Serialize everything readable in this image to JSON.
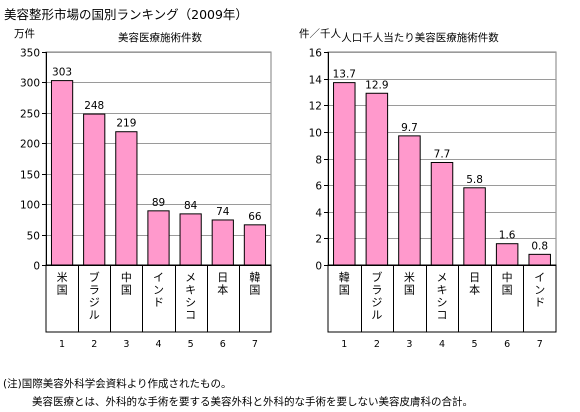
{
  "title": "美容整形市場の国別ランキング（2009年）",
  "note_line1": "(注)国際美容外科学会資料より作成されたもの。",
  "note_line2": "美容医療とは、外科的な手術を要する美容外科と外科的な手術を要しない美容皮膚科の合計。",
  "chart_data": [
    {
      "type": "bar",
      "title": "美容医療施術件数",
      "unit_label": "万件",
      "categories": [
        "米国",
        "ブラジル",
        "中国",
        "インド",
        "メキシコ",
        "日本",
        "韓国"
      ],
      "ranks": [
        "1",
        "2",
        "3",
        "4",
        "5",
        "6",
        "7"
      ],
      "values": [
        303,
        248,
        219,
        89,
        84,
        74,
        66
      ],
      "value_labels": [
        "303",
        "248",
        "219",
        "89",
        "84",
        "74",
        "66"
      ],
      "ylim": [
        0,
        350
      ],
      "yticks": [
        0,
        50,
        100,
        150,
        200,
        250,
        300,
        350
      ],
      "ytick_labels": [
        "0",
        "50",
        "100",
        "150",
        "200",
        "250",
        "300",
        "350"
      ],
      "grid": true,
      "bar_color": "#FF99CC"
    },
    {
      "type": "bar",
      "title": "人口千人当たり美容医療施術件数",
      "unit_label": "件／千人",
      "categories": [
        "韓国",
        "ブラジル",
        "米国",
        "メキシコ",
        "日本",
        "中国",
        "インド"
      ],
      "ranks": [
        "1",
        "2",
        "3",
        "4",
        "5",
        "6",
        "7"
      ],
      "values": [
        13.7,
        12.9,
        9.7,
        7.7,
        5.8,
        1.6,
        0.8
      ],
      "value_labels": [
        "13.7",
        "12.9",
        "9.7",
        "7.7",
        "5.8",
        "1.6",
        "0.8"
      ],
      "ylim": [
        0,
        16
      ],
      "yticks": [
        0,
        2,
        4,
        6,
        8,
        10,
        12,
        14,
        16
      ],
      "ytick_labels": [
        "0",
        "2",
        "4",
        "6",
        "8",
        "10",
        "12",
        "14",
        "16"
      ],
      "grid": true,
      "bar_color": "#FF99CC"
    }
  ]
}
